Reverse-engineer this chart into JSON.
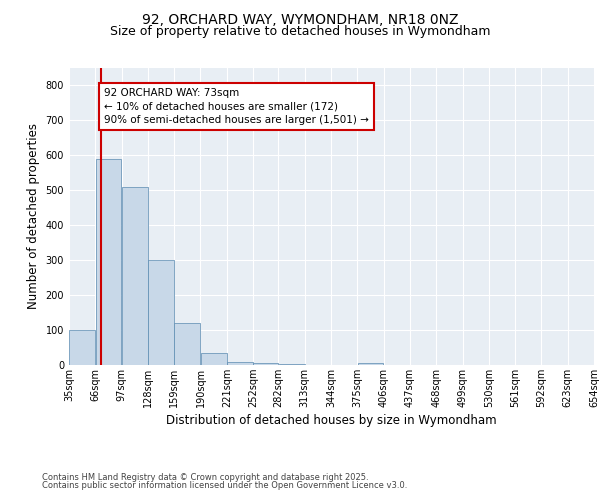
{
  "title1": "92, ORCHARD WAY, WYMONDHAM, NR18 0NZ",
  "title2": "Size of property relative to detached houses in Wymondham",
  "xlabel": "Distribution of detached houses by size in Wymondham",
  "ylabel": "Number of detached properties",
  "bar_values": [
    100,
    590,
    510,
    300,
    120,
    35,
    10,
    5,
    2,
    0,
    0,
    5,
    0,
    0,
    0,
    0,
    0,
    0,
    0,
    0
  ],
  "bin_edges": [
    35,
    66,
    97,
    128,
    159,
    190,
    221,
    252,
    282,
    313,
    344,
    375,
    406,
    437,
    468,
    499,
    530,
    561,
    592,
    623,
    654
  ],
  "x_labels": [
    "35sqm",
    "66sqm",
    "97sqm",
    "128sqm",
    "159sqm",
    "190sqm",
    "221sqm",
    "252sqm",
    "282sqm",
    "313sqm",
    "344sqm",
    "375sqm",
    "406sqm",
    "437sqm",
    "468sqm",
    "499sqm",
    "530sqm",
    "561sqm",
    "592sqm",
    "623sqm",
    "654sqm"
  ],
  "property_size": 73,
  "bar_color": "#c8d8e8",
  "bar_edge_color": "#5a8ab0",
  "vline_color": "#cc0000",
  "annotation_text": "92 ORCHARD WAY: 73sqm\n← 10% of detached houses are smaller (172)\n90% of semi-detached houses are larger (1,501) →",
  "annotation_box_color": "#cc0000",
  "annotation_text_color": "#000000",
  "ylim": [
    0,
    850
  ],
  "yticks": [
    0,
    100,
    200,
    300,
    400,
    500,
    600,
    700,
    800
  ],
  "background_color": "#e8eef4",
  "footer_line1": "Contains HM Land Registry data © Crown copyright and database right 2025.",
  "footer_line2": "Contains public sector information licensed under the Open Government Licence v3.0.",
  "title_fontsize": 10,
  "subtitle_fontsize": 9,
  "axis_label_fontsize": 8.5,
  "tick_fontsize": 7,
  "annotation_fontsize": 7.5,
  "footer_fontsize": 6
}
